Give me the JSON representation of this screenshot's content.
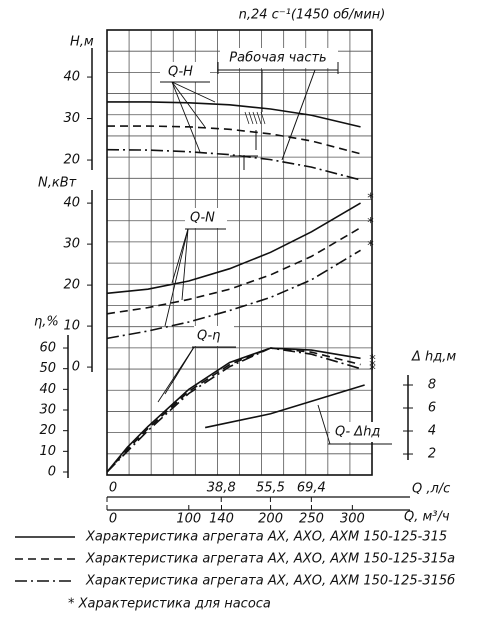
{
  "chart_data": {
    "type": "line",
    "title": "n,24 с⁻¹(1450 об/мин)",
    "xlabel": "Q, м³/ч",
    "xlim": [
      0,
      324
    ],
    "xticks": [
      0,
      100,
      140,
      200,
      250,
      300
    ],
    "x2label": "Q ,л/с",
    "x2lim": [
      0,
      90
    ],
    "x2ticks": [
      0,
      {
        "value": 38.8,
        "label": "38,8"
      },
      {
        "value": 55.5,
        "label": "55,5"
      },
      {
        "value": 69.4,
        "label": "69,4"
      }
    ],
    "axes": {
      "H": {
        "label": "H,м",
        "ylim": [
          17.6,
          47
        ],
        "yticks": [
          20,
          30,
          40
        ],
        "curve_label": "Q-H"
      },
      "N": {
        "label": "N,кВт",
        "ylim": [
          -1.2,
          43.2
        ],
        "yticks": [
          0,
          10,
          20,
          30,
          40
        ],
        "curve_label": "Q-N"
      },
      "eta": {
        "label": "η,%",
        "ylim": [
          -2.9,
          66.3
        ],
        "yticks": [
          0,
          10,
          20,
          30,
          40,
          50,
          60
        ],
        "curve_label": "Q-η"
      },
      "dh": {
        "label": "Δ hд,м",
        "ylim": [
          1.48,
          8.87
        ],
        "yticks": [
          2,
          4,
          6,
          8
        ],
        "curve_label": "Q- Δhд"
      }
    },
    "work_label": "Рабочая часть",
    "series": [
      {
        "name": "Характеристика агрегата АХ, АХО, АХМ 150-125-315",
        "dash": "solid",
        "H": {
          "x": [
            0,
            50,
            100,
            150,
            200,
            250,
            310
          ],
          "values": [
            34,
            34,
            33.8,
            33.3,
            32.3,
            30.8,
            28
          ]
        },
        "N": {
          "x": [
            0,
            50,
            100,
            150,
            200,
            250,
            310
          ],
          "values": [
            18,
            19,
            21,
            24,
            28,
            33,
            40
          ]
        },
        "eta": {
          "x": [
            0,
            25,
            50,
            100,
            150,
            200,
            250,
            310
          ],
          "values": [
            0,
            12,
            22,
            40,
            53,
            60,
            59,
            55
          ]
        }
      },
      {
        "name": "Характеристика агрегата АХ, АХО, АХМ 150-125-315а",
        "dash": "dashed",
        "H": {
          "x": [
            0,
            50,
            100,
            150,
            200,
            250,
            310
          ],
          "values": [
            28.2,
            28.2,
            28,
            27.4,
            26.3,
            24.6,
            21.5
          ]
        },
        "N": {
          "x": [
            0,
            50,
            100,
            150,
            200,
            250,
            310
          ],
          "values": [
            13,
            14.5,
            16.5,
            19,
            22.5,
            27,
            34
          ]
        },
        "eta": {
          "x": [
            0,
            25,
            50,
            100,
            150,
            200,
            250,
            310
          ],
          "values": [
            0,
            11,
            21,
            39,
            52,
            60,
            58,
            52
          ]
        }
      },
      {
        "name": "Характеристика агрегата АХ, АХО, АХМ 150-125-315б",
        "dash": "dashdot",
        "H": {
          "x": [
            0,
            50,
            100,
            150,
            200,
            250,
            310
          ],
          "values": [
            22.5,
            22.4,
            22,
            21.3,
            20.1,
            18.3,
            15.2
          ]
        },
        "N": {
          "x": [
            0,
            50,
            100,
            150,
            200,
            250,
            310
          ],
          "values": [
            7,
            8.8,
            11,
            13.8,
            17,
            21.3,
            28.5
          ]
        },
        "eta": {
          "x": [
            0,
            25,
            50,
            100,
            150,
            200,
            250,
            310
          ],
          "values": [
            0,
            10,
            20,
            38,
            51,
            60,
            57,
            50
          ]
        }
      }
    ],
    "npsh": {
      "x": [
        120,
        200,
        315
      ],
      "values": [
        4.3,
        5.5,
        8
      ]
    },
    "pump_mark": "*",
    "pump_note": "* Характеристика для насоса"
  }
}
